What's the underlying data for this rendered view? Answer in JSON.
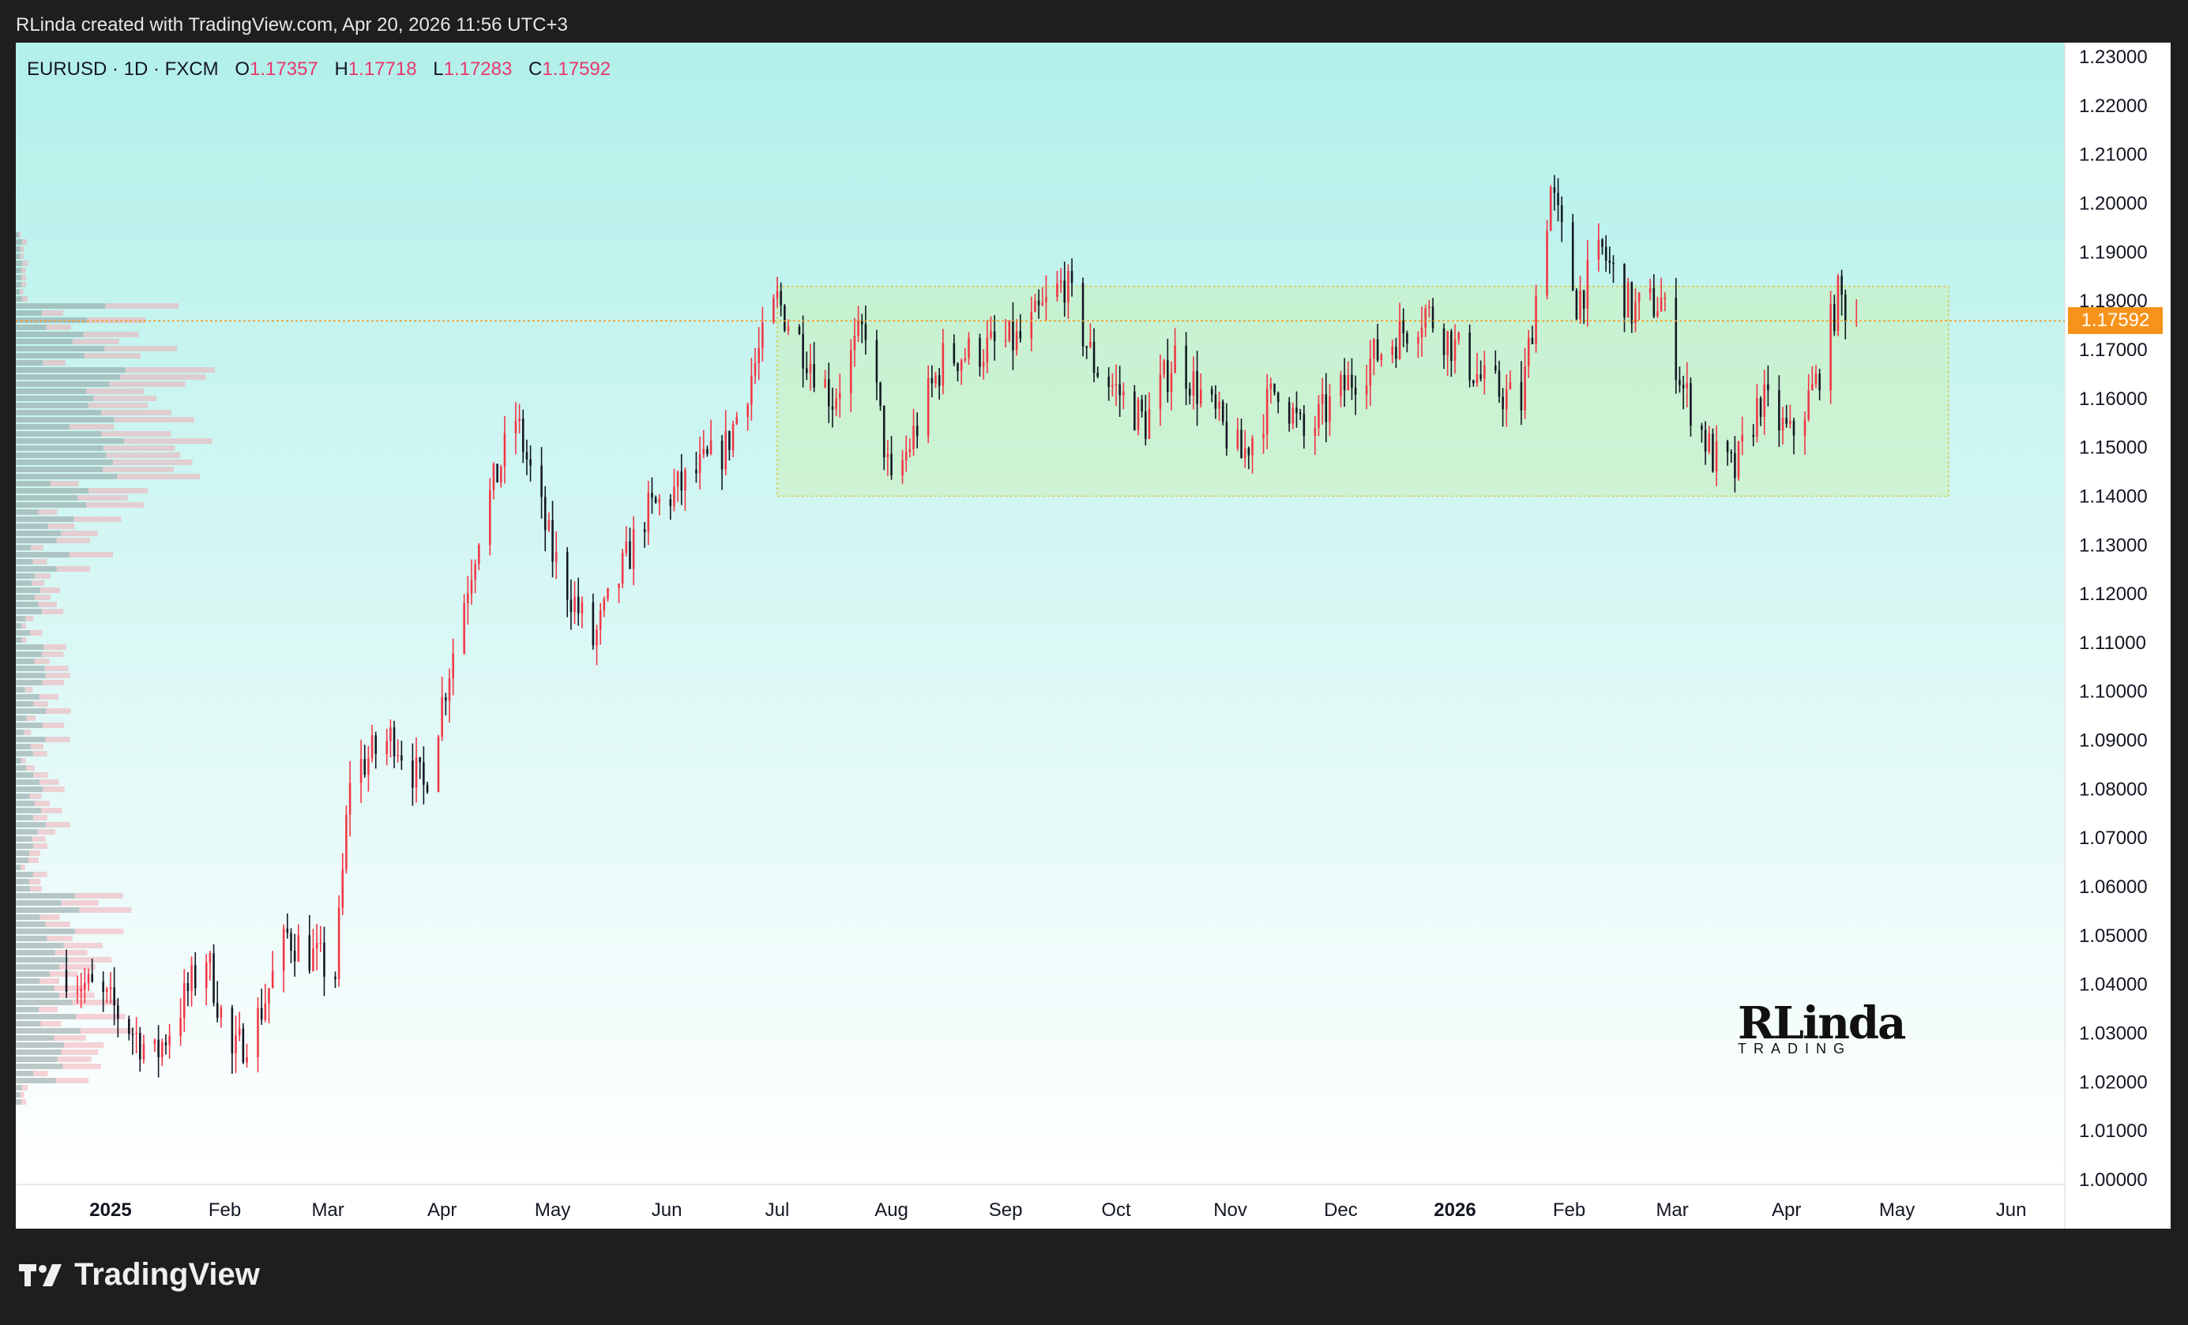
{
  "header": {
    "attribution": "RLinda created with TradingView.com, Apr 20, 2026 11:56 UTC+3"
  },
  "legend": {
    "symbol": "EURUSD · 1D · FXCM",
    "open_label": "O",
    "open": "1.17357",
    "high_label": "H",
    "high": "1.17718",
    "low_label": "L",
    "low": "1.17283",
    "close_label": "C",
    "close": "1.17592"
  },
  "current_price": {
    "label": "1.17592",
    "value": 1.17592
  },
  "watermark": {
    "main": "RLinda",
    "sub": "TRADING"
  },
  "footer": {
    "brand": "TradingView"
  },
  "colors": {
    "up": "#f23645",
    "down": "#131722",
    "box": "#c9f0b0",
    "price_tag": "#f7931a",
    "bg_top": "#b2f0ea",
    "bg_bottom": "#ffffff"
  },
  "chart_data": {
    "type": "candlestick",
    "symbol": "EURUSD",
    "timeframe": "1D",
    "ylim": [
      1.0,
      1.23
    ],
    "y_ticks": [
      "1.00000",
      "1.01000",
      "1.02000",
      "1.03000",
      "1.04000",
      "1.05000",
      "1.06000",
      "1.07000",
      "1.08000",
      "1.09000",
      "1.10000",
      "1.11000",
      "1.12000",
      "1.13000",
      "1.14000",
      "1.15000",
      "1.16000",
      "1.17000",
      "1.18000",
      "1.19000",
      "1.20000",
      "1.21000",
      "1.22000",
      "1.23000"
    ],
    "x_ticks": [
      {
        "label": "2025",
        "date": "2025-01-01",
        "bold": true
      },
      {
        "label": "Feb",
        "date": "2025-02-01"
      },
      {
        "label": "Mar",
        "date": "2025-03-01"
      },
      {
        "label": "Apr",
        "date": "2025-04-01"
      },
      {
        "label": "May",
        "date": "2025-05-01"
      },
      {
        "label": "Jun",
        "date": "2025-06-01"
      },
      {
        "label": "Jul",
        "date": "2025-07-01"
      },
      {
        "label": "Aug",
        "date": "2025-08-01"
      },
      {
        "label": "Sep",
        "date": "2025-09-01"
      },
      {
        "label": "Oct",
        "date": "2025-10-01"
      },
      {
        "label": "Nov",
        "date": "2025-11-01"
      },
      {
        "label": "Dec",
        "date": "2025-12-01"
      },
      {
        "label": "2026",
        "date": "2026-01-01",
        "bold": true
      },
      {
        "label": "Feb",
        "date": "2026-02-01"
      },
      {
        "label": "Mar",
        "date": "2026-03-01"
      },
      {
        "label": "Apr",
        "date": "2026-04-01"
      },
      {
        "label": "May",
        "date": "2026-05-01"
      },
      {
        "label": "Jun",
        "date": "2026-06-01"
      }
    ],
    "range_box": {
      "start": "2025-07-01",
      "end": "2026-05-15",
      "low": 1.14,
      "high": 1.183
    },
    "price_line": 1.17592,
    "start_date": "2024-12-20",
    "close_path": [
      [
        "2024-12-20",
        1.043
      ],
      [
        "2025-01-02",
        1.035
      ],
      [
        "2025-01-13",
        1.025
      ],
      [
        "2025-01-27",
        1.046
      ],
      [
        "2025-02-03",
        1.025
      ],
      [
        "2025-02-10",
        1.033
      ],
      [
        "2025-02-18",
        1.05
      ],
      [
        "2025-03-03",
        1.042
      ],
      [
        "2025-03-07",
        1.083
      ],
      [
        "2025-03-19",
        1.091
      ],
      [
        "2025-03-27",
        1.08
      ],
      [
        "2025-04-03",
        1.105
      ],
      [
        "2025-04-11",
        1.133
      ],
      [
        "2025-04-21",
        1.156
      ],
      [
        "2025-05-01",
        1.128
      ],
      [
        "2025-05-12",
        1.11
      ],
      [
        "2025-05-26",
        1.136
      ],
      [
        "2025-06-05",
        1.142
      ],
      [
        "2025-06-17",
        1.15
      ],
      [
        "2025-07-01",
        1.18
      ],
      [
        "2025-07-16",
        1.16
      ],
      [
        "2025-07-25",
        1.175
      ],
      [
        "2025-08-01",
        1.141
      ],
      [
        "2025-08-15",
        1.168
      ],
      [
        "2025-09-05",
        1.172
      ],
      [
        "2025-09-17",
        1.184
      ],
      [
        "2025-09-25",
        1.167
      ],
      [
        "2025-10-09",
        1.155
      ],
      [
        "2025-10-17",
        1.169
      ],
      [
        "2025-11-04",
        1.148
      ],
      [
        "2025-11-14",
        1.163
      ],
      [
        "2025-11-21",
        1.152
      ],
      [
        "2025-12-05",
        1.165
      ],
      [
        "2025-12-24",
        1.178
      ],
      [
        "2026-01-09",
        1.163
      ],
      [
        "2026-01-19",
        1.159
      ],
      [
        "2026-01-27",
        1.203
      ],
      [
        "2026-02-03",
        1.18
      ],
      [
        "2026-02-10",
        1.19
      ],
      [
        "2026-02-18",
        1.178
      ],
      [
        "2026-02-26",
        1.18
      ],
      [
        "2026-03-04",
        1.162
      ],
      [
        "2026-03-12",
        1.148
      ],
      [
        "2026-03-18",
        1.145
      ],
      [
        "2026-03-25",
        1.16
      ],
      [
        "2026-04-02",
        1.152
      ],
      [
        "2026-04-09",
        1.163
      ],
      [
        "2026-04-15",
        1.181
      ],
      [
        "2026-04-20",
        1.17592
      ]
    ]
  }
}
